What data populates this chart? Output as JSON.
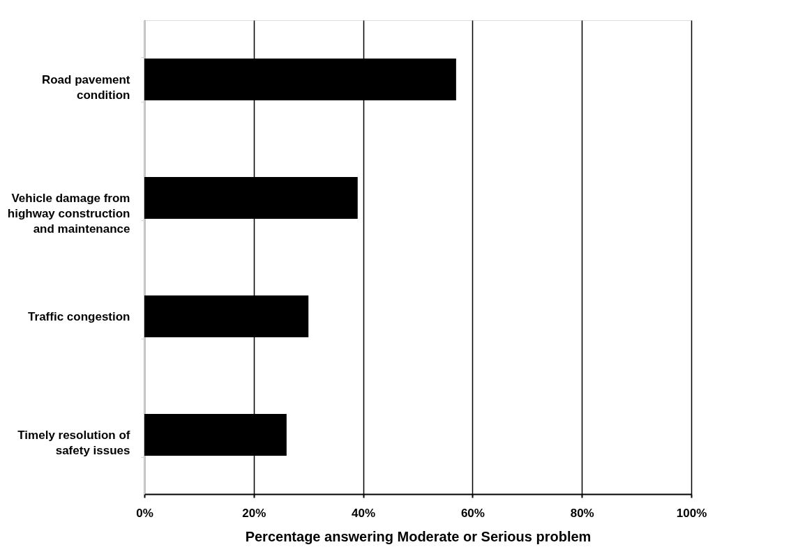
{
  "chart_data": {
    "type": "bar",
    "orientation": "horizontal",
    "categories": [
      "Road pavement condition",
      "Vehicle damage from highway construction and maintenance",
      "Traffic congestion",
      "Timely resolution of safety issues"
    ],
    "values": [
      57,
      39,
      30,
      26
    ],
    "color": "#000000",
    "xlabel": "Percentage answering Moderate or Serious problem",
    "xlim": [
      0,
      100
    ],
    "xticks": [
      {
        "value": 0,
        "label": "0%"
      },
      {
        "value": 20,
        "label": "20%"
      },
      {
        "value": 40,
        "label": "40%"
      },
      {
        "value": 60,
        "label": "60%"
      },
      {
        "value": 80,
        "label": "80%"
      },
      {
        "value": 100,
        "label": "100%"
      }
    ],
    "grid": "x"
  }
}
